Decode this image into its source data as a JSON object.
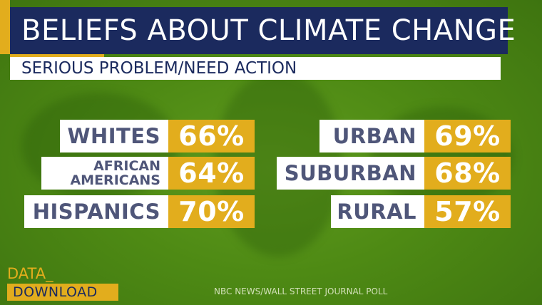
{
  "header": {
    "title": "BELIEFS ABOUT CLIMATE CHANGE",
    "subtitle": "SERIOUS PROBLEM/NEED ACTION"
  },
  "left_stats": [
    {
      "label_lines": [
        "WHITES"
      ],
      "value": "66%"
    },
    {
      "label_lines": [
        "AFRICAN",
        "AMERICANS"
      ],
      "value": "64%"
    },
    {
      "label_lines": [
        "HISPANICS"
      ],
      "value": "70%"
    }
  ],
  "right_stats": [
    {
      "label_lines": [
        "URBAN"
      ],
      "value": "69%"
    },
    {
      "label_lines": [
        "SUBURBAN"
      ],
      "value": "68%"
    },
    {
      "label_lines": [
        "RURAL"
      ],
      "value": "57%"
    }
  ],
  "logo": {
    "line1": "DATA_",
    "line2": "DOWNLOAD"
  },
  "source": "NBC NEWS/WALL STREET JOURNAL POLL",
  "colors": {
    "navy": "#1b2a5e",
    "gold": "#e2ad1d",
    "green": "#4e8a14",
    "label_text": "#4f5679"
  }
}
